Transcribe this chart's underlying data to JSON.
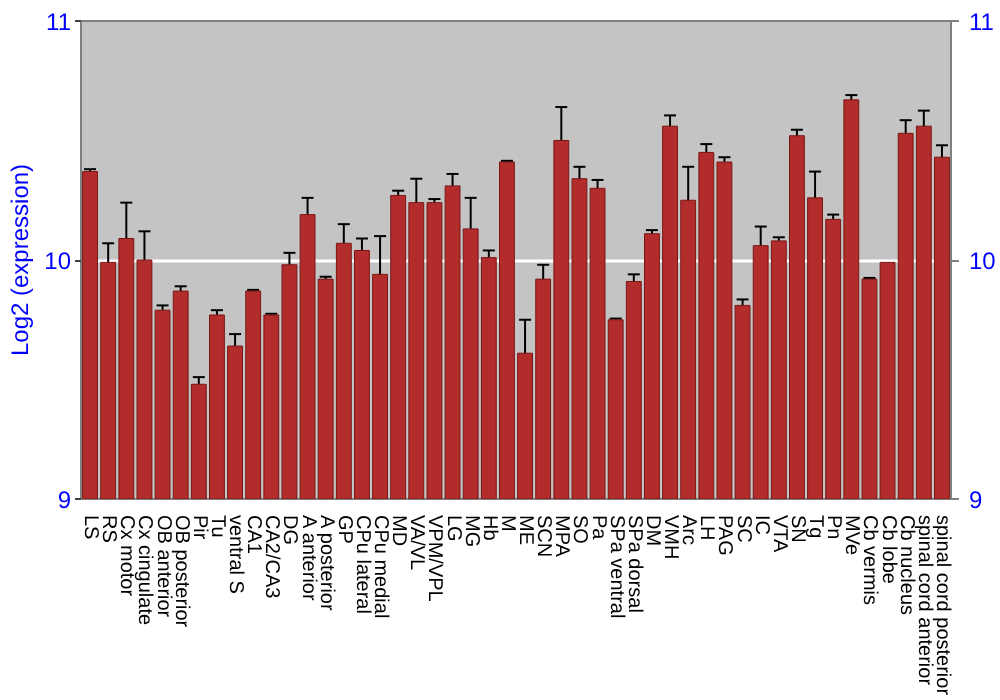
{
  "chart_data": {
    "type": "bar",
    "ylabel": "Log2 (expression)",
    "categories": [
      "LS",
      "RS",
      "Cx motor",
      "Cx cingulate",
      "OB anterior",
      "OB posterior",
      "Pir",
      "Tu",
      "ventral S",
      "CA1",
      "CA2/CA3",
      "DG",
      "A anterior",
      "A posterior",
      "GP",
      "CPu lateral",
      "CPu medial",
      "MD",
      "VA/VL",
      "VPM/VPL",
      "LG",
      "MG",
      "Hb",
      "M",
      "ME",
      "SCN",
      "MPA",
      "SO",
      "Pa",
      "SPa ventral",
      "SPa dorsal",
      "DM",
      "VMH",
      "Arc",
      "LH",
      "PAG",
      "SC",
      "IC",
      "VTA",
      "SN",
      "Tg",
      "Pn",
      "MVe",
      "Cb vermis",
      "Cb lobe",
      "Cb nucleus",
      "spinal cord anterior",
      "spinal cord posterior"
    ],
    "values": [
      10.37,
      9.99,
      10.09,
      10.0,
      9.79,
      9.87,
      9.48,
      9.77,
      9.64,
      9.87,
      9.77,
      9.98,
      10.19,
      9.92,
      10.07,
      10.04,
      9.94,
      10.27,
      10.24,
      10.24,
      10.31,
      10.13,
      10.01,
      10.41,
      9.61,
      9.92,
      10.5,
      10.34,
      10.3,
      9.75,
      9.91,
      10.11,
      10.56,
      10.25,
      10.45,
      10.41,
      9.81,
      10.06,
      10.08,
      10.52,
      10.26,
      10.17,
      10.67,
      9.92,
      9.99,
      10.53,
      10.56,
      10.43
    ],
    "errors": [
      0.01,
      0.08,
      0.15,
      0.12,
      0.02,
      0.02,
      0.03,
      0.02,
      0.05,
      0.005,
      0.005,
      0.05,
      0.07,
      0.01,
      0.08,
      0.05,
      0.16,
      0.02,
      0.1,
      0.015,
      0.05,
      0.13,
      0.03,
      0.005,
      0.14,
      0.06,
      0.14,
      0.05,
      0.035,
      0.005,
      0.03,
      0.015,
      0.045,
      0.14,
      0.035,
      0.02,
      0.025,
      0.08,
      0.015,
      0.025,
      0.11,
      0.02,
      0.02,
      0.005,
      null,
      0.055,
      0.065,
      0.05
    ],
    "color": "#b22c2c",
    "ylim": [
      9,
      11
    ],
    "yticks": [
      9,
      10,
      11
    ],
    "y2lim": [
      9,
      11
    ],
    "y2ticks": [
      9,
      10,
      11
    ],
    "grid": "y"
  }
}
